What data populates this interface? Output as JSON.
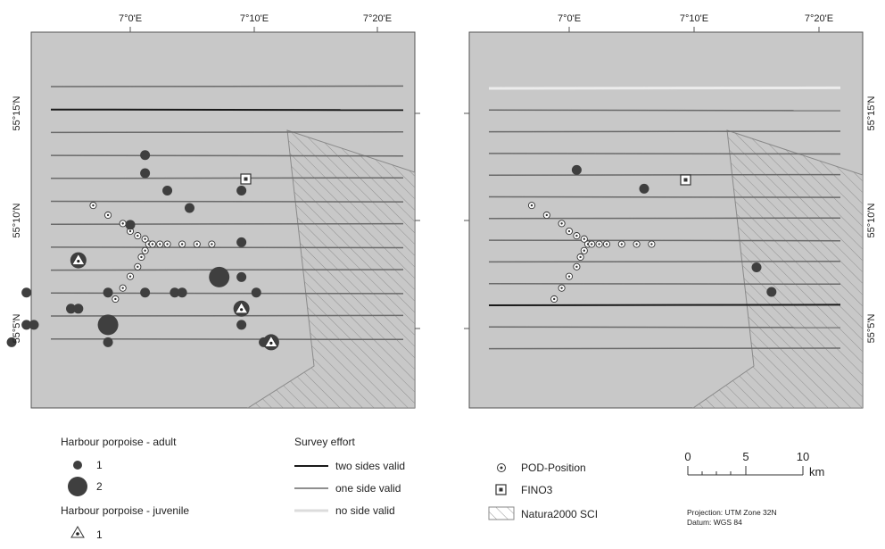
{
  "maps": [
    {
      "id": "left",
      "lon_labels": [
        "7°0'E",
        "7°10'E",
        "7°20'E"
      ],
      "lat_labels": [
        "55°15'N",
        "55°10'N",
        "55°5'N"
      ],
      "transects": [
        {
          "effort": "one"
        },
        {
          "effort": "two"
        },
        {
          "effort": "one"
        },
        {
          "effort": "one"
        },
        {
          "effort": "one"
        },
        {
          "effort": "one"
        },
        {
          "effort": "one"
        },
        {
          "effort": "one"
        },
        {
          "effort": "one"
        },
        {
          "effort": "one"
        },
        {
          "effort": "one"
        },
        {
          "effort": "one"
        }
      ],
      "adult_sightings": [
        {
          "lon": 7.02,
          "lat": 55.268,
          "n": 1
        },
        {
          "lon": 7.02,
          "lat": 55.24,
          "n": 1
        },
        {
          "lon": 7.05,
          "lat": 55.213,
          "n": 1
        },
        {
          "lon": 7.15,
          "lat": 55.213,
          "n": 1
        },
        {
          "lon": 7.08,
          "lat": 55.186,
          "n": 1
        },
        {
          "lon": 7.0,
          "lat": 55.16,
          "n": 1
        },
        {
          "lon": 7.15,
          "lat": 55.133,
          "n": 1
        },
        {
          "lon": 7.12,
          "lat": 55.079,
          "n": 2
        },
        {
          "lon": 7.15,
          "lat": 55.079,
          "n": 1
        },
        {
          "lon": 6.86,
          "lat": 55.055,
          "n": 1
        },
        {
          "lon": 6.97,
          "lat": 55.055,
          "n": 1
        },
        {
          "lon": 7.02,
          "lat": 55.055,
          "n": 1
        },
        {
          "lon": 7.06,
          "lat": 55.055,
          "n": 1
        },
        {
          "lon": 7.07,
          "lat": 55.055,
          "n": 1
        },
        {
          "lon": 7.17,
          "lat": 55.055,
          "n": 1
        },
        {
          "lon": 6.92,
          "lat": 55.03,
          "n": 1
        },
        {
          "lon": 6.93,
          "lat": 55.03,
          "n": 1
        },
        {
          "lon": 7.15,
          "lat": 55.03,
          "n": 1
        },
        {
          "lon": 6.86,
          "lat": 55.005,
          "n": 1
        },
        {
          "lon": 6.87,
          "lat": 55.005,
          "n": 1
        },
        {
          "lon": 6.97,
          "lat": 55.005,
          "n": 2
        },
        {
          "lon": 7.15,
          "lat": 55.005,
          "n": 1
        },
        {
          "lon": 6.84,
          "lat": 54.978,
          "n": 1
        },
        {
          "lon": 6.97,
          "lat": 54.978,
          "n": 1
        },
        {
          "lon": 7.18,
          "lat": 54.978,
          "n": 1
        }
      ],
      "juvenile_sightings": [
        {
          "lon": 6.93,
          "lat": 55.105,
          "n": 1
        },
        {
          "lon": 7.15,
          "lat": 55.03,
          "n": 1
        },
        {
          "lon": 7.19,
          "lat": 54.978,
          "n": 1
        }
      ],
      "show_pod": true
    },
    {
      "id": "right",
      "lon_labels": [
        "7°0'E",
        "7°10'E",
        "7°20'E"
      ],
      "lat_labels": [
        "55°15'N",
        "55°10'N",
        "55°5'N"
      ],
      "transects": [
        {
          "effort": "none"
        },
        {
          "effort": "one"
        },
        {
          "effort": "one"
        },
        {
          "effort": "one"
        },
        {
          "effort": "one"
        },
        {
          "effort": "one"
        },
        {
          "effort": "one"
        },
        {
          "effort": "one"
        },
        {
          "effort": "one"
        },
        {
          "effort": "one"
        },
        {
          "effort": "two"
        },
        {
          "effort": "one"
        },
        {
          "effort": "one"
        }
      ],
      "adult_sightings": [
        {
          "lon": 7.01,
          "lat": 55.245,
          "n": 1
        },
        {
          "lon": 7.1,
          "lat": 55.216,
          "n": 1
        },
        {
          "lon": 7.25,
          "lat": 55.094,
          "n": 1
        },
        {
          "lon": 7.27,
          "lat": 55.056,
          "n": 1
        }
      ],
      "juvenile_sightings": [],
      "show_pod": true
    }
  ],
  "pod_positions": [
    {
      "lon": 6.95,
      "lat": 55.19
    },
    {
      "lon": 6.97,
      "lat": 55.175
    },
    {
      "lon": 6.99,
      "lat": 55.162
    },
    {
      "lon": 7.0,
      "lat": 55.15
    },
    {
      "lon": 7.01,
      "lat": 55.143
    },
    {
      "lon": 7.02,
      "lat": 55.138
    },
    {
      "lon": 7.025,
      "lat": 55.13
    },
    {
      "lon": 7.03,
      "lat": 55.13
    },
    {
      "lon": 7.04,
      "lat": 55.13
    },
    {
      "lon": 7.05,
      "lat": 55.13
    },
    {
      "lon": 7.07,
      "lat": 55.13
    },
    {
      "lon": 7.09,
      "lat": 55.13
    },
    {
      "lon": 7.11,
      "lat": 55.13
    },
    {
      "lon": 7.02,
      "lat": 55.12
    },
    {
      "lon": 7.015,
      "lat": 55.11
    },
    {
      "lon": 7.01,
      "lat": 55.095
    },
    {
      "lon": 7.0,
      "lat": 55.08
    },
    {
      "lon": 6.99,
      "lat": 55.062
    },
    {
      "lon": 6.98,
      "lat": 55.045
    }
  ],
  "fino3": {
    "lon": 7.07,
    "lat": 55.165
  },
  "legend": {
    "adult_title": "Harbour porpoise - adult",
    "adult_items": [
      "1",
      "2"
    ],
    "juvenile_title": "Harbour porpoise - juvenile",
    "juvenile_items": [
      "1"
    ],
    "effort_title": "Survey effort",
    "effort_items": [
      "two sides valid",
      "one side valid",
      "no side valid"
    ],
    "pod_label": "POD-Position",
    "fino_label": "FINO3",
    "natura_label": "Natura2000 SCI",
    "scale_ticks": [
      "0",
      "5",
      "10"
    ],
    "scale_unit": "km",
    "projection": "Projection: UTM Zone 32N",
    "datum": "Datum: WGS 84"
  },
  "colors": {
    "map_bg": "#c8c8c8",
    "frame": "#555555",
    "two_sides": "#1a1a1a",
    "one_side": "#6a6a6a",
    "no_side": "#ececec",
    "sighting": "#3f3f3f",
    "hatch": "#8a8a8a"
  }
}
